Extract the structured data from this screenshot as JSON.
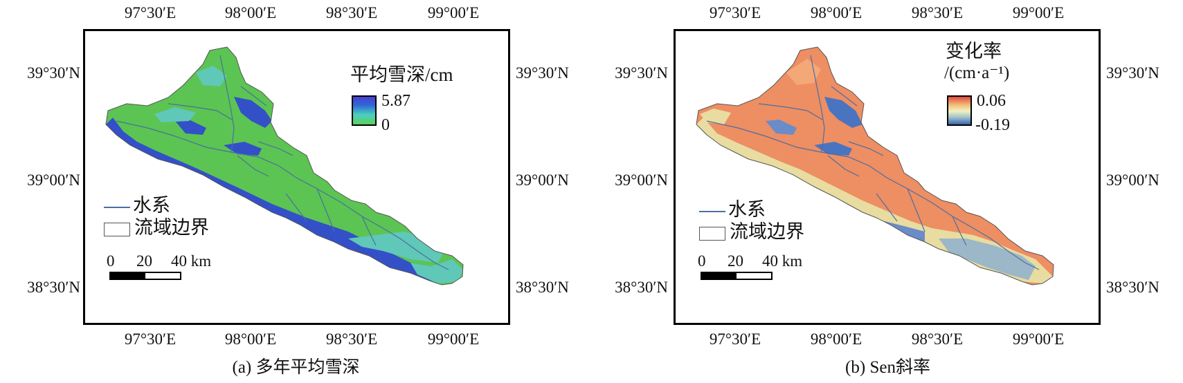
{
  "panels": [
    {
      "id": "a",
      "caption": "(a) 多年平均雪深",
      "legend": {
        "title": "平均雪深/cm",
        "subtitle": "",
        "max": "5.87",
        "min": "0",
        "colors": [
          "#4a3fd0",
          "#2f66d8",
          "#4ad0c0",
          "#5bd05b"
        ]
      },
      "palette": {
        "base": "#5cc452",
        "high": "#3350c8",
        "mid": "#5fc8b8",
        "low": "#54c04c"
      }
    },
    {
      "id": "b",
      "caption": "(b) Sen斜率",
      "legend": {
        "title": "变化率",
        "subtitle": "/(cm·a⁻¹)",
        "max": "0.06",
        "min": "-0.19",
        "colors": [
          "#e04a3a",
          "#f2c07a",
          "#f2f0c0",
          "#9cc0c8",
          "#3a64b0"
        ]
      },
      "palette": {
        "base": "#ee8e63",
        "high": "#4a74c0",
        "mid": "#c8d6b8",
        "low": "#f0a070"
      }
    }
  ],
  "axes": {
    "lon_labels": [
      "97°30′E",
      "98°00′E",
      "98°30′E",
      "99°00′E"
    ],
    "lat_labels": [
      "39°30′N",
      "39°00′N",
      "38°30′N"
    ]
  },
  "key": {
    "river": "水系",
    "basin": "流域边界"
  },
  "scale_bar": {
    "labels": [
      "0",
      "20",
      "40 km"
    ]
  }
}
